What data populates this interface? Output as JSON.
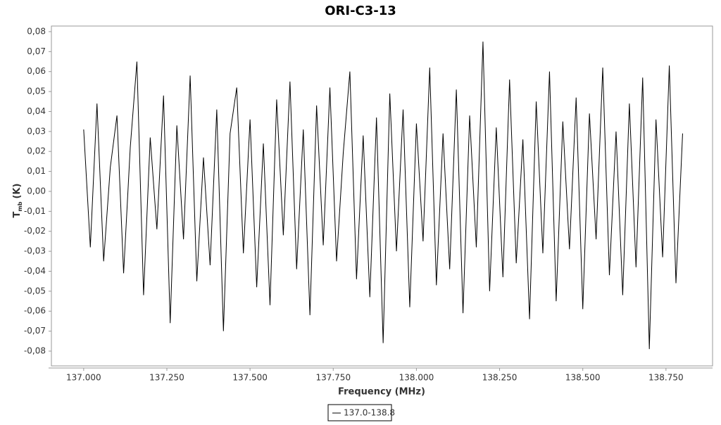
{
  "chart_data": {
    "type": "line",
    "title": "ORI-C3-13",
    "x_label": "Frequency (MHz)",
    "y_label": "T",
    "y_label_sub": "mb",
    "y_label_unit": "(K)",
    "xlim": [
      136.903,
      138.89
    ],
    "ylim": [
      -0.0874,
      0.0828
    ],
    "xticks": [
      {
        "value": 137.0,
        "label": "137.000"
      },
      {
        "value": 137.25,
        "label": "137.250"
      },
      {
        "value": 137.5,
        "label": "137.500"
      },
      {
        "value": 137.75,
        "label": "137.750"
      },
      {
        "value": 138.0,
        "label": "138.000"
      },
      {
        "value": 138.25,
        "label": "138.250"
      },
      {
        "value": 138.5,
        "label": "138.500"
      },
      {
        "value": 138.75,
        "label": "138.750"
      }
    ],
    "yticks": [
      {
        "value": 0.08,
        "label": "0,08"
      },
      {
        "value": 0.07,
        "label": "0,07"
      },
      {
        "value": 0.06,
        "label": "0,06"
      },
      {
        "value": 0.05,
        "label": "0,05"
      },
      {
        "value": 0.04,
        "label": "0,04"
      },
      {
        "value": 0.03,
        "label": "0,03"
      },
      {
        "value": 0.02,
        "label": "0,02"
      },
      {
        "value": 0.01,
        "label": "0,01"
      },
      {
        "value": 0.0,
        "label": "0,00"
      },
      {
        "value": -0.01,
        "label": "-0,01"
      },
      {
        "value": -0.02,
        "label": "-0,02"
      },
      {
        "value": -0.03,
        "label": "-0,03"
      },
      {
        "value": -0.04,
        "label": "-0,04"
      },
      {
        "value": -0.05,
        "label": "-0,05"
      },
      {
        "value": -0.06,
        "label": "-0,06"
      },
      {
        "value": -0.07,
        "label": "-0,07"
      },
      {
        "value": -0.08,
        "label": "-0,08"
      }
    ],
    "grid": false,
    "legend": "bottom",
    "series": [
      {
        "name": "137.0-138.8",
        "color": "#000000",
        "x": [
          137.0,
          137.02,
          137.04,
          137.06,
          137.08,
          137.1,
          137.12,
          137.14,
          137.16,
          137.18,
          137.2,
          137.22,
          137.24,
          137.26,
          137.28,
          137.3,
          137.32,
          137.34,
          137.36,
          137.38,
          137.4,
          137.42,
          137.44,
          137.46,
          137.48,
          137.5,
          137.52,
          137.54,
          137.56,
          137.58,
          137.6,
          137.62,
          137.64,
          137.66,
          137.68,
          137.7,
          137.72,
          137.74,
          137.76,
          137.78,
          137.8,
          137.82,
          137.84,
          137.86,
          137.88,
          137.9,
          137.92,
          137.94,
          137.96,
          137.98,
          138.0,
          138.02,
          138.04,
          138.06,
          138.08,
          138.1,
          138.12,
          138.14,
          138.16,
          138.18,
          138.2,
          138.22,
          138.24,
          138.26,
          138.28,
          138.3,
          138.32,
          138.34,
          138.36,
          138.38,
          138.4,
          138.42,
          138.44,
          138.46,
          138.48,
          138.5,
          138.52,
          138.54,
          138.56,
          138.58,
          138.6,
          138.62,
          138.64,
          138.66,
          138.68,
          138.7,
          138.72,
          138.74,
          138.76,
          138.78,
          138.8
        ],
        "values": [
          0.031,
          -0.028,
          0.044,
          -0.035,
          0.012,
          0.038,
          -0.041,
          0.022,
          0.065,
          -0.052,
          0.027,
          -0.019,
          0.048,
          -0.066,
          0.033,
          -0.024,
          0.058,
          -0.045,
          0.017,
          -0.037,
          0.041,
          -0.07,
          0.029,
          0.052,
          -0.031,
          0.036,
          -0.048,
          0.024,
          -0.057,
          0.046,
          -0.022,
          0.055,
          -0.039,
          0.031,
          -0.062,
          0.043,
          -0.027,
          0.052,
          -0.035,
          0.019,
          0.06,
          -0.044,
          0.028,
          -0.053,
          0.037,
          -0.076,
          0.049,
          -0.03,
          0.041,
          -0.058,
          0.034,
          -0.025,
          0.062,
          -0.047,
          0.029,
          -0.039,
          0.051,
          -0.061,
          0.038,
          -0.028,
          0.075,
          -0.05,
          0.032,
          -0.043,
          0.056,
          -0.036,
          0.026,
          -0.064,
          0.045,
          -0.031,
          0.06,
          -0.055,
          0.035,
          -0.029,
          0.047,
          -0.059,
          0.039,
          -0.024,
          0.062,
          -0.042,
          0.03,
          -0.052,
          0.044,
          -0.038,
          0.057,
          -0.079,
          0.036,
          -0.033,
          0.063,
          -0.046,
          0.029
        ]
      }
    ]
  }
}
